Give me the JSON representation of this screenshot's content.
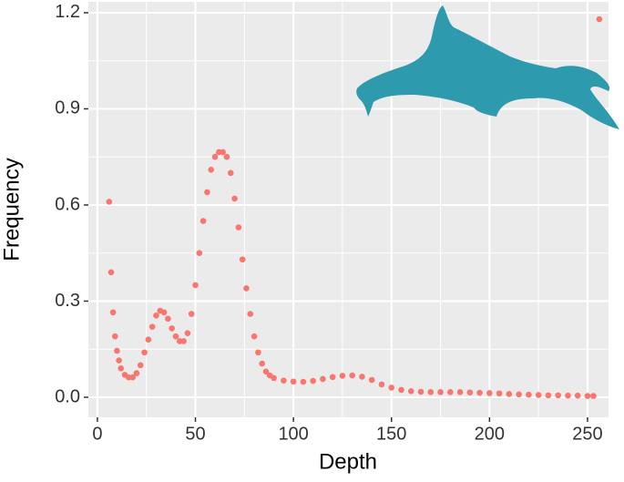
{
  "chart_data": {
    "type": "scatter",
    "x_label": "Depth",
    "y_label": "Frequency",
    "color": "#F8766D",
    "x": [
      6,
      7,
      8,
      9,
      10,
      11,
      12,
      14,
      16,
      18,
      20,
      22,
      24,
      26,
      28,
      30,
      32,
      34,
      36,
      38,
      40,
      42,
      44,
      46,
      48,
      50,
      52,
      54,
      56,
      58,
      60,
      62,
      64,
      66,
      68,
      70,
      72,
      74,
      76,
      78,
      80,
      82,
      84,
      86,
      88,
      90,
      95,
      100,
      105,
      110,
      115,
      120,
      125,
      130,
      135,
      140,
      145,
      150,
      155,
      160,
      165,
      170,
      175,
      180,
      185,
      190,
      195,
      200,
      205,
      210,
      215,
      220,
      225,
      230,
      235,
      240,
      245,
      250,
      253,
      256
    ],
    "y": [
      0.61,
      0.39,
      0.265,
      0.19,
      0.145,
      0.115,
      0.09,
      0.07,
      0.062,
      0.062,
      0.075,
      0.1,
      0.14,
      0.18,
      0.22,
      0.255,
      0.27,
      0.265,
      0.245,
      0.215,
      0.19,
      0.175,
      0.175,
      0.2,
      0.26,
      0.35,
      0.45,
      0.55,
      0.64,
      0.71,
      0.75,
      0.765,
      0.765,
      0.75,
      0.7,
      0.62,
      0.53,
      0.43,
      0.34,
      0.26,
      0.19,
      0.14,
      0.105,
      0.08,
      0.068,
      0.06,
      0.052,
      0.049,
      0.048,
      0.051,
      0.057,
      0.063,
      0.067,
      0.068,
      0.064,
      0.054,
      0.04,
      0.03,
      0.023,
      0.019,
      0.017,
      0.016,
      0.016,
      0.016,
      0.016,
      0.015,
      0.014,
      0.013,
      0.012,
      0.01,
      0.009,
      0.008,
      0.007,
      0.006,
      0.006,
      0.005,
      0.005,
      0.004,
      0.004,
      1.18
    ],
    "xlim": [
      -4.6,
      260.7
    ],
    "ylim": [
      -0.0626,
      1.234
    ],
    "xticks": [
      0,
      50,
      100,
      150,
      200,
      250
    ],
    "yticks": [
      {
        "value": 0,
        "label": "0.0"
      },
      {
        "value": 0.3,
        "label": "0.3"
      },
      {
        "value": 0.6,
        "label": "0.6"
      },
      {
        "value": 0.9,
        "label": "0.9"
      },
      {
        "value": 1.2,
        "label": "1.2"
      }
    ],
    "grid": true
  }
}
